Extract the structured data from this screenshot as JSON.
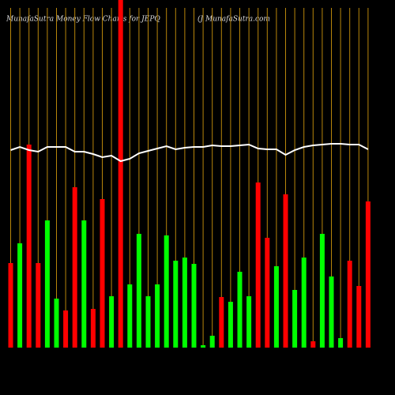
{
  "chart_data": {
    "type": "bar",
    "title": "MunafaSutra  Money Flow  Charts for JEPQ",
    "subtitle": "(J MunafaSutra.com",
    "ylim": [
      0,
      440
    ],
    "values": [
      107,
      132,
      257,
      107,
      161,
      62,
      47,
      203,
      161,
      49,
      188,
      65,
      460,
      80,
      144,
      65,
      80,
      142,
      110,
      114,
      106,
      3,
      15,
      64,
      58,
      96,
      65,
      209,
      139,
      103,
      194,
      73,
      114,
      8,
      144,
      90,
      12,
      110,
      78,
      185
    ],
    "colors": [
      "#ff0000",
      "#00ff00",
      "#ff0000",
      "#ff0000",
      "#00ff00",
      "#00ff00",
      "#ff0000",
      "#ff0000",
      "#00ff00",
      "#ff0000",
      "#ff0000",
      "#00ff00",
      "#ff0000",
      "#00ff00",
      "#00ff00",
      "#00ff00",
      "#00ff00",
      "#00ff00",
      "#00ff00",
      "#00ff00",
      "#00ff00",
      "#00ff00",
      "#00ff00",
      "#ff0000",
      "#00ff00",
      "#00ff00",
      "#00ff00",
      "#ff0000",
      "#ff0000",
      "#00ff00",
      "#ff0000",
      "#00ff00",
      "#00ff00",
      "#ff0000",
      "#00ff00",
      "#00ff00",
      "#00ff00",
      "#ff0000",
      "#ff0000",
      "#ff0000"
    ],
    "line": {
      "color": "#ffffff",
      "values": [
        250,
        254,
        250,
        248,
        254,
        254,
        254,
        248,
        248,
        245,
        241,
        243,
        236,
        239,
        246,
        249,
        252,
        255,
        251,
        253,
        254,
        254,
        256,
        255,
        255,
        256,
        257,
        252,
        251,
        251,
        244,
        250,
        254,
        256,
        257,
        258,
        258,
        257,
        257,
        251
      ]
    },
    "gridline_color": "#b8860b"
  }
}
